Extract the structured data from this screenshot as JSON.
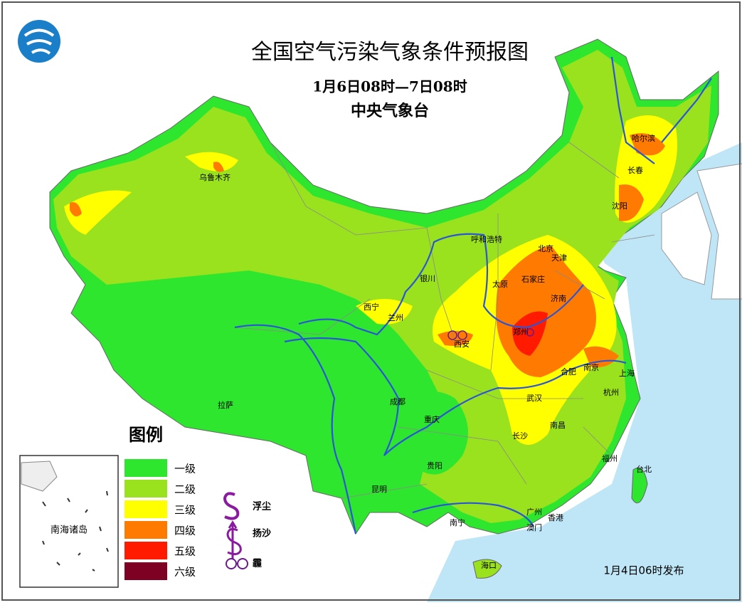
{
  "header": {
    "title": "全国空气污染气象条件预报图",
    "period": "1月6日08时—7日08时",
    "issuer": "中央气象台"
  },
  "legend": {
    "title": "图例",
    "levels": [
      {
        "label": "一级",
        "color": "#2ee62e"
      },
      {
        "label": "二级",
        "color": "#9be21e"
      },
      {
        "label": "三级",
        "color": "#ffff00"
      },
      {
        "label": "四级",
        "color": "#ff7a00"
      },
      {
        "label": "五级",
        "color": "#ff1a00"
      },
      {
        "label": "六级",
        "color": "#7e0023"
      }
    ],
    "symbols": [
      "浮尘",
      "扬沙",
      "霾"
    ]
  },
  "cities": [
    "乌鲁木齐",
    "哈尔滨",
    "长春",
    "沈阳",
    "呼和浩特",
    "北京",
    "天津",
    "银川",
    "太原",
    "石家庄",
    "济南",
    "西宁",
    "兰州",
    "郑州",
    "西安",
    "合肥",
    "南京",
    "上海",
    "成都",
    "武汉",
    "杭州",
    "拉萨",
    "重庆",
    "南昌",
    "长沙",
    "贵阳",
    "福州",
    "台北",
    "昆明",
    "广州",
    "香港",
    "澳门",
    "南宁",
    "海口"
  ],
  "inset": {
    "label": "南海诸岛"
  },
  "footer": {
    "issued": "1月4日06时发布"
  }
}
